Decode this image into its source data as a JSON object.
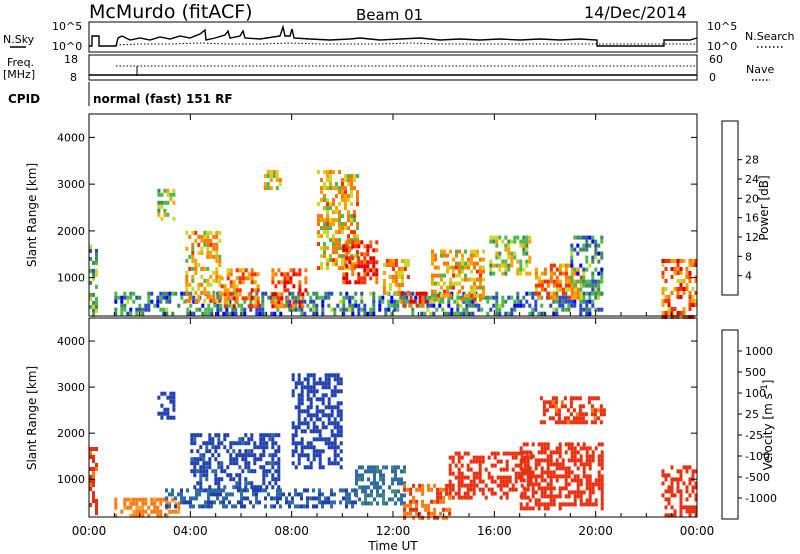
{
  "header": {
    "station": "McMurdo (fitACF)",
    "beam": "Beam 01",
    "date": "14/Dec/2014"
  },
  "top_panel": {
    "left_label_1": "N.Sky",
    "right_label_1": "N.Search",
    "left_ticks": [
      "10^5",
      "10^0"
    ],
    "right_ticks": [
      "10^5",
      "10^0"
    ],
    "freq_label_1": "Freq.",
    "freq_label_2": "[MHz]",
    "freq_ticks": [
      "18",
      "8"
    ],
    "nave_label": "Nave",
    "nave_ticks": [
      "60",
      "0"
    ],
    "cpid_label": "CPID",
    "cpid_value": "normal (fast) 151 RF"
  },
  "colors": {
    "power_scale": [
      "#0000ff",
      "#2a48c8",
      "#3f8a5c",
      "#4cb84c",
      "#c8d82a",
      "#ffa000",
      "#ff7800",
      "#ff3000",
      "#e00000"
    ],
    "velocity_scale": [
      "#2040b0",
      "#2f6aa0",
      "#3e8a78",
      "#58b050",
      "#b0b0b0",
      "#e8c060",
      "#ff9d30",
      "#ff7a10",
      "#e83010"
    ]
  },
  "chart_data": [
    {
      "type": "heatmap",
      "panel": "power",
      "ylabel": "Slant Range [km]",
      "y_ticks": [
        "1000",
        "2000",
        "3000",
        "4000"
      ],
      "x_ticks": [
        "00:00",
        "04:00",
        "08:00",
        "12:00",
        "16:00",
        "20:00",
        "00:00"
      ],
      "colorbar_label": "Power [dB]",
      "colorbar_ticks": [
        "4",
        "8",
        "12",
        "16",
        "20",
        "24",
        "28"
      ],
      "zlim": [
        0,
        30
      ],
      "xlim": [
        0,
        24
      ],
      "ylim": [
        180,
        4500
      ],
      "regions": [
        {
          "t0": 0.0,
          "t1": 0.3,
          "r0": 200,
          "r1": 1700,
          "v": 10
        },
        {
          "t0": 1.0,
          "t1": 20.3,
          "r0": 200,
          "r1": 700,
          "v": 8
        },
        {
          "t0": 2.7,
          "t1": 3.3,
          "r0": 2300,
          "r1": 2900,
          "v": 14
        },
        {
          "t0": 3.8,
          "t1": 5.2,
          "r0": 500,
          "r1": 2000,
          "v": 18
        },
        {
          "t0": 5.2,
          "t1": 6.7,
          "r0": 400,
          "r1": 1200,
          "v": 22
        },
        {
          "t0": 6.9,
          "t1": 7.6,
          "r0": 2900,
          "r1": 3300,
          "v": 16
        },
        {
          "t0": 7.2,
          "t1": 8.6,
          "r0": 400,
          "r1": 1200,
          "v": 24
        },
        {
          "t0": 9.0,
          "t1": 10.6,
          "r0": 1200,
          "r1": 3300,
          "v": 18
        },
        {
          "t0": 10.0,
          "t1": 11.4,
          "r0": 900,
          "r1": 1800,
          "v": 26
        },
        {
          "t0": 11.6,
          "t1": 12.6,
          "r0": 700,
          "r1": 1400,
          "v": 20
        },
        {
          "t0": 12.3,
          "t1": 13.3,
          "r0": 400,
          "r1": 700,
          "v": 26
        },
        {
          "t0": 13.5,
          "t1": 15.6,
          "r0": 500,
          "r1": 1600,
          "v": 18
        },
        {
          "t0": 15.8,
          "t1": 17.4,
          "r0": 1100,
          "r1": 1900,
          "v": 14
        },
        {
          "t0": 17.6,
          "t1": 19.4,
          "r0": 600,
          "r1": 1300,
          "v": 20
        },
        {
          "t0": 19.0,
          "t1": 20.3,
          "r0": 700,
          "r1": 1900,
          "v": 8
        },
        {
          "t0": 22.6,
          "t1": 24.0,
          "r0": 200,
          "r1": 1400,
          "v": 22
        }
      ]
    },
    {
      "type": "heatmap",
      "panel": "velocity",
      "ylabel": "Slant Range [km]",
      "y_ticks": [
        "1000",
        "2000",
        "3000",
        "4000"
      ],
      "x_ticks": [
        "00:00",
        "04:00",
        "08:00",
        "12:00",
        "16:00",
        "20:00",
        "00:00"
      ],
      "xlabel": "Time UT",
      "colorbar_label": "Velocity [m s",
      "colorbar_label_sup": "-1",
      "colorbar_ticks": [
        "1000",
        "500",
        "100",
        "25",
        "-25",
        "-100",
        "-500",
        "-1000"
      ],
      "zlim": [
        -1000,
        1000
      ],
      "xlim": [
        0,
        24
      ],
      "ylim": [
        180,
        4500
      ],
      "regions": [
        {
          "t0": 0.0,
          "t1": 0.3,
          "r0": 200,
          "r1": 1700,
          "v": -300
        },
        {
          "t0": 1.0,
          "t1": 3.5,
          "r0": 200,
          "r1": 600,
          "v": -60
        },
        {
          "t0": 2.7,
          "t1": 3.3,
          "r0": 2300,
          "r1": 2900,
          "v": 700
        },
        {
          "t0": 3.0,
          "t1": 10.5,
          "r0": 450,
          "r1": 800,
          "v": 200
        },
        {
          "t0": 4.0,
          "t1": 7.5,
          "r0": 800,
          "r1": 2000,
          "v": 300
        },
        {
          "t0": 8.0,
          "t1": 10.0,
          "r0": 1300,
          "r1": 3300,
          "v": 600
        },
        {
          "t0": 10.5,
          "t1": 12.4,
          "r0": 500,
          "r1": 1300,
          "v": 60
        },
        {
          "t0": 12.4,
          "t1": 14.2,
          "r0": 200,
          "r1": 900,
          "v": -200
        },
        {
          "t0": 14.2,
          "t1": 17.5,
          "r0": 600,
          "r1": 1600,
          "v": -400
        },
        {
          "t0": 17.0,
          "t1": 20.3,
          "r0": 400,
          "r1": 1800,
          "v": -450
        },
        {
          "t0": 17.8,
          "t1": 20.3,
          "r0": 2200,
          "r1": 2800,
          "v": -300
        },
        {
          "t0": 22.6,
          "t1": 24.0,
          "r0": 200,
          "r1": 1300,
          "v": -400
        }
      ]
    }
  ]
}
